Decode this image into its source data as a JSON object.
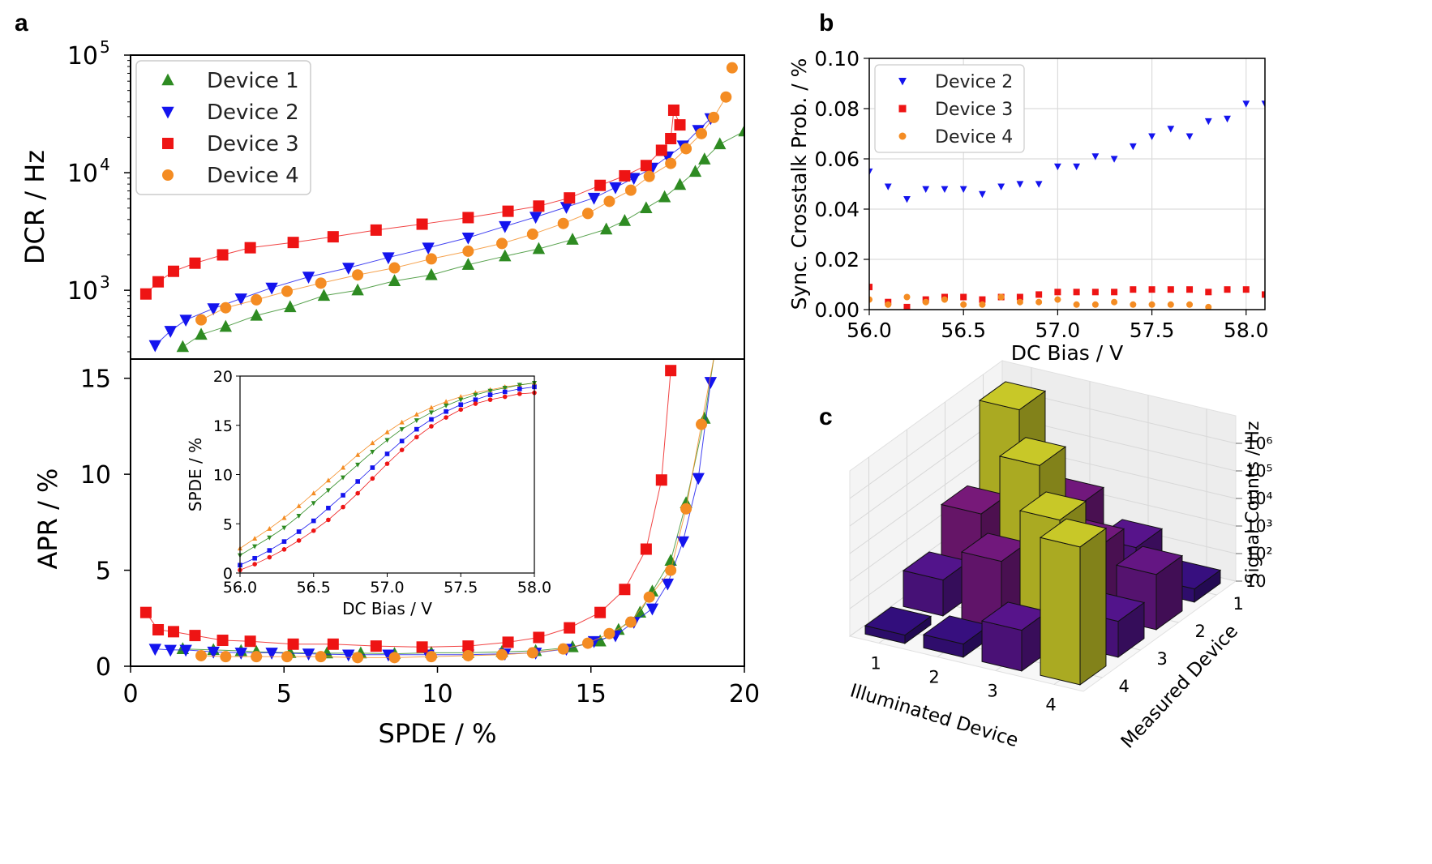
{
  "panels": {
    "a": "a",
    "b": "b",
    "c": "c"
  },
  "colors": {
    "device1": "#2e8b22",
    "device2": "#1414ee",
    "device3": "#ee1414",
    "device4": "#f48c23"
  },
  "chart_data": [
    {
      "id": "dcr",
      "type": "line",
      "title": "",
      "xlabel": "",
      "ylabel": "DCR / Hz",
      "yscale": "log",
      "xlim": [
        0,
        20
      ],
      "ylim": [
        260,
        100000
      ],
      "yticks": [
        {
          "value": 1000,
          "base": "10",
          "exp": "3"
        },
        {
          "value": 10000,
          "base": "10",
          "exp": "4"
        },
        {
          "value": 100000,
          "base": "10",
          "exp": "5"
        }
      ],
      "legend_position": "top-left",
      "series": [
        {
          "name": "Device 1",
          "marker": "triangle-up",
          "color": "#2e8b22",
          "x": [
            1.7,
            2.3,
            3.1,
            4.1,
            5.2,
            6.3,
            7.4,
            8.6,
            9.8,
            11.0,
            12.2,
            13.3,
            14.4,
            15.5,
            16.1,
            16.8,
            17.4,
            17.9,
            18.4,
            18.7,
            19.2,
            20.0
          ],
          "y": [
            330,
            420,
            490,
            610,
            720,
            900,
            1000,
            1200,
            1350,
            1650,
            1950,
            2250,
            2700,
            3300,
            3900,
            5000,
            6200,
            7900,
            10200,
            13000,
            17500,
            22500
          ]
        },
        {
          "name": "Device 2",
          "marker": "triangle-down",
          "color": "#1414ee",
          "x": [
            0.8,
            1.3,
            1.8,
            2.7,
            3.6,
            4.6,
            5.8,
            7.1,
            8.4,
            9.7,
            11.0,
            12.2,
            13.2,
            14.2,
            15.1,
            15.8,
            16.4,
            17.0,
            17.5,
            18.0,
            18.5,
            18.9
          ],
          "y": [
            340,
            450,
            560,
            700,
            850,
            1050,
            1300,
            1550,
            1900,
            2300,
            2800,
            3500,
            4200,
            5100,
            6100,
            7500,
            9000,
            11000,
            13700,
            17000,
            23000,
            29000
          ]
        },
        {
          "name": "Device 3",
          "marker": "square",
          "color": "#ee1414",
          "x": [
            0.5,
            0.9,
            1.4,
            2.1,
            3.0,
            3.9,
            5.3,
            6.6,
            8.0,
            9.5,
            11.0,
            12.3,
            13.3,
            14.3,
            15.3,
            16.1,
            16.8,
            17.3,
            17.6,
            17.7,
            17.9
          ],
          "y": [
            930,
            1180,
            1450,
            1700,
            2000,
            2300,
            2550,
            2850,
            3250,
            3650,
            4150,
            4700,
            5200,
            6100,
            7800,
            9400,
            11500,
            15500,
            19500,
            34000,
            25500
          ]
        },
        {
          "name": "Device 4",
          "marker": "circle",
          "color": "#f48c23",
          "x": [
            2.3,
            3.1,
            4.1,
            5.1,
            6.2,
            7.4,
            8.6,
            9.8,
            11.0,
            12.1,
            13.1,
            14.1,
            14.9,
            15.6,
            16.3,
            16.9,
            17.6,
            18.1,
            18.6,
            19.0,
            19.4
          ],
          "y": [
            560,
            710,
            830,
            980,
            1150,
            1350,
            1550,
            1850,
            2150,
            2500,
            3000,
            3700,
            4500,
            5700,
            7100,
            9300,
            12000,
            16000,
            21500,
            29500,
            44000
          ]
        }
      ],
      "extra_points": [
        {
          "series": "Device 4",
          "x": 19.6,
          "y": 78000
        }
      ]
    },
    {
      "id": "apr",
      "type": "line",
      "title": "",
      "xlabel": "SPDE / %",
      "ylabel": "APR / %",
      "xlim": [
        0,
        20
      ],
      "ylim": [
        0,
        16
      ],
      "xticks": [
        "0",
        "5",
        "10",
        "15",
        "20"
      ],
      "yticks": [
        "0",
        "5",
        "10",
        "15"
      ],
      "series": [
        {
          "name": "Device 1",
          "marker": "triangle-up",
          "color": "#2e8b22",
          "x": [
            1.7,
            2.7,
            3.6,
            4.1,
            5.2,
            6.4,
            7.5,
            8.6,
            9.8,
            11.0,
            12.1,
            13.2,
            14.4,
            15.3,
            15.9,
            16.6,
            17.0,
            17.6,
            18.1,
            18.7,
            19.0
          ],
          "y": [
            0.9,
            0.85,
            0.8,
            0.75,
            0.7,
            0.68,
            0.68,
            0.65,
            0.7,
            0.7,
            0.75,
            0.8,
            1.0,
            1.3,
            1.9,
            2.8,
            3.9,
            5.5,
            8.5,
            12.9,
            16
          ]
        },
        {
          "name": "Device 2",
          "marker": "triangle-down",
          "color": "#1414ee",
          "x": [
            0.8,
            1.3,
            1.8,
            2.7,
            3.6,
            4.6,
            5.8,
            7.1,
            8.4,
            9.7,
            11.0,
            12.2,
            13.2,
            14.2,
            15.1,
            15.8,
            16.4,
            17.0,
            17.5,
            18.0,
            18.5,
            18.9
          ],
          "y": [
            0.9,
            0.85,
            0.85,
            0.75,
            0.7,
            0.7,
            0.65,
            0.6,
            0.6,
            0.6,
            0.6,
            0.65,
            0.7,
            0.9,
            1.3,
            1.6,
            2.3,
            3.0,
            4.3,
            6.5,
            9.8,
            14.8
          ]
        },
        {
          "name": "Device 3",
          "marker": "square",
          "color": "#ee1414",
          "x": [
            0.5,
            0.9,
            1.4,
            2.1,
            3.0,
            3.9,
            5.3,
            6.6,
            8.0,
            9.5,
            11.0,
            12.3,
            13.3,
            14.3,
            15.3,
            16.1,
            16.8,
            17.3,
            17.6
          ],
          "y": [
            2.8,
            1.9,
            1.8,
            1.6,
            1.35,
            1.3,
            1.15,
            1.15,
            1.05,
            1.0,
            1.05,
            1.25,
            1.5,
            2.0,
            2.8,
            4.0,
            6.1,
            9.7,
            15.4
          ]
        },
        {
          "name": "Device 4",
          "marker": "circle",
          "color": "#f48c23",
          "x": [
            2.3,
            3.1,
            4.1,
            5.1,
            6.2,
            7.4,
            8.6,
            9.8,
            11.0,
            12.1,
            13.1,
            14.1,
            14.9,
            15.6,
            16.3,
            16.9,
            17.6,
            18.1,
            18.6,
            19.0
          ],
          "y": [
            0.55,
            0.5,
            0.5,
            0.5,
            0.5,
            0.45,
            0.45,
            0.5,
            0.55,
            0.6,
            0.7,
            0.9,
            1.2,
            1.7,
            2.3,
            3.6,
            5.0,
            8.2,
            12.6,
            16
          ]
        }
      ]
    },
    {
      "id": "apr-inset",
      "type": "line",
      "title": "",
      "xlabel": "DC Bias / V",
      "ylabel": "SPDE / %",
      "xlim": [
        56.0,
        58.0
      ],
      "ylim": [
        0,
        20
      ],
      "xticks": [
        "56.0",
        "56.5",
        "57.0",
        "57.5",
        "58.0"
      ],
      "yticks": [
        "0",
        "5",
        "10",
        "15",
        "20"
      ],
      "x": [
        56.0,
        56.1,
        56.2,
        56.3,
        56.4,
        56.5,
        56.6,
        56.7,
        56.8,
        56.9,
        57.0,
        57.1,
        57.2,
        57.3,
        57.4,
        57.5,
        57.6,
        57.7,
        57.8,
        57.9,
        58.0
      ],
      "series": [
        {
          "name": "Device 4",
          "marker": "triangle-up",
          "color": "#f48c23",
          "values": [
            2.5,
            3.5,
            4.5,
            5.6,
            6.8,
            8.1,
            9.4,
            10.7,
            12.0,
            13.2,
            14.3,
            15.3,
            16.1,
            16.8,
            17.4,
            17.9,
            18.3,
            18.6,
            18.9,
            19.1,
            19.3
          ]
        },
        {
          "name": "Device 1",
          "marker": "triangle-down",
          "color": "#2e8b22",
          "values": [
            1.8,
            2.7,
            3.6,
            4.6,
            5.8,
            7.1,
            8.4,
            9.7,
            11.0,
            12.3,
            13.5,
            14.6,
            15.5,
            16.3,
            17.0,
            17.6,
            18.1,
            18.5,
            18.8,
            19.1,
            19.3
          ]
        },
        {
          "name": "Device 2",
          "marker": "square",
          "color": "#1414ee",
          "values": [
            0.8,
            1.5,
            2.3,
            3.2,
            4.2,
            5.3,
            6.6,
            7.9,
            9.3,
            10.7,
            12.1,
            13.4,
            14.6,
            15.6,
            16.4,
            17.1,
            17.6,
            18.1,
            18.4,
            18.7,
            18.9
          ]
        },
        {
          "name": "Device 3",
          "marker": "circle",
          "color": "#ee1414",
          "values": [
            0.3,
            0.9,
            1.6,
            2.4,
            3.3,
            4.3,
            5.4,
            6.7,
            8.1,
            9.6,
            11.1,
            12.5,
            13.8,
            14.9,
            15.8,
            16.6,
            17.2,
            17.6,
            17.9,
            18.2,
            18.3
          ]
        }
      ]
    },
    {
      "id": "crosstalk",
      "type": "scatter",
      "title": "",
      "xlabel": "DC Bias / V",
      "ylabel": "Sync. Crosstalk Prob. / %",
      "xlim": [
        56.0,
        58.1
      ],
      "ylim": [
        0.0,
        0.1
      ],
      "xticks": [
        "56.0",
        "56.5",
        "57.0",
        "57.5",
        "58.0"
      ],
      "yticks": [
        "0.00",
        "0.02",
        "0.04",
        "0.06",
        "0.08",
        "0.10"
      ],
      "grid": true,
      "legend_position": "top-left",
      "x": [
        56.0,
        56.1,
        56.2,
        56.3,
        56.4,
        56.5,
        56.6,
        56.7,
        56.8,
        56.9,
        57.0,
        57.1,
        57.2,
        57.3,
        57.4,
        57.5,
        57.6,
        57.7,
        57.8,
        57.9,
        58.0,
        58.1
      ],
      "series": [
        {
          "name": "Device 2",
          "marker": "triangle-down",
          "color": "#1414ee",
          "values": [
            0.055,
            0.049,
            0.044,
            0.048,
            0.048,
            0.048,
            0.046,
            0.049,
            0.05,
            0.05,
            0.057,
            0.057,
            0.061,
            0.06,
            0.065,
            0.069,
            0.072,
            0.069,
            0.075,
            0.076,
            0.082,
            0.082
          ]
        },
        {
          "name": "Device 3",
          "marker": "square",
          "color": "#ee1414",
          "values": [
            0.009,
            0.003,
            0.001,
            0.004,
            0.005,
            0.005,
            0.004,
            0.005,
            0.005,
            0.006,
            0.007,
            0.007,
            0.007,
            0.007,
            0.008,
            0.008,
            0.008,
            0.008,
            0.007,
            0.008,
            0.008,
            0.006
          ]
        },
        {
          "name": "Device 4",
          "marker": "circle",
          "color": "#f48c23",
          "values": [
            0.004,
            0.002,
            0.005,
            0.003,
            0.004,
            0.002,
            0.002,
            0.005,
            0.003,
            0.003,
            0.004,
            0.002,
            0.002,
            0.003,
            0.002,
            0.002,
            0.002,
            0.002,
            0.001,
            null,
            null,
            null
          ]
        }
      ]
    },
    {
      "id": "signal-3d",
      "type": "bar3d",
      "title": "",
      "xlabel": "Illuminated Device",
      "ylabel": "Measured Device",
      "zlabel": "Signal Counts / Hz",
      "zscale": "log",
      "xticks": [
        "1",
        "2",
        "3",
        "4"
      ],
      "yticks": [
        "1",
        "2",
        "3",
        "4"
      ],
      "zticks": [
        "10",
        "10²",
        "10³",
        "10⁴",
        "10⁵",
        "10⁶"
      ],
      "bars": [
        {
          "illuminated": 1,
          "measured": 1,
          "value": 3000000
        },
        {
          "illuminated": 2,
          "measured": 2,
          "value": 900000
        },
        {
          "illuminated": 3,
          "measured": 3,
          "value": 300000
        },
        {
          "illuminated": 4,
          "measured": 4,
          "value": 1000000
        },
        {
          "illuminated": 1,
          "measured": 2,
          "value": 5000
        },
        {
          "illuminated": 1,
          "measured": 3,
          "value": 200
        },
        {
          "illuminated": 1,
          "measured": 4,
          "value": 20
        },
        {
          "illuminated": 2,
          "measured": 1,
          "value": 3000
        },
        {
          "illuminated": 2,
          "measured": 3,
          "value": 3000
        },
        {
          "illuminated": 2,
          "measured": 4,
          "value": 30
        },
        {
          "illuminated": 3,
          "measured": 1,
          "value": 300
        },
        {
          "illuminated": 3,
          "measured": 2,
          "value": 3000
        },
        {
          "illuminated": 3,
          "measured": 4,
          "value": 300
        },
        {
          "illuminated": 4,
          "measured": 1,
          "value": 30
        },
        {
          "illuminated": 4,
          "measured": 2,
          "value": 1000
        },
        {
          "illuminated": 4,
          "measured": 3,
          "value": 200
        }
      ]
    }
  ]
}
